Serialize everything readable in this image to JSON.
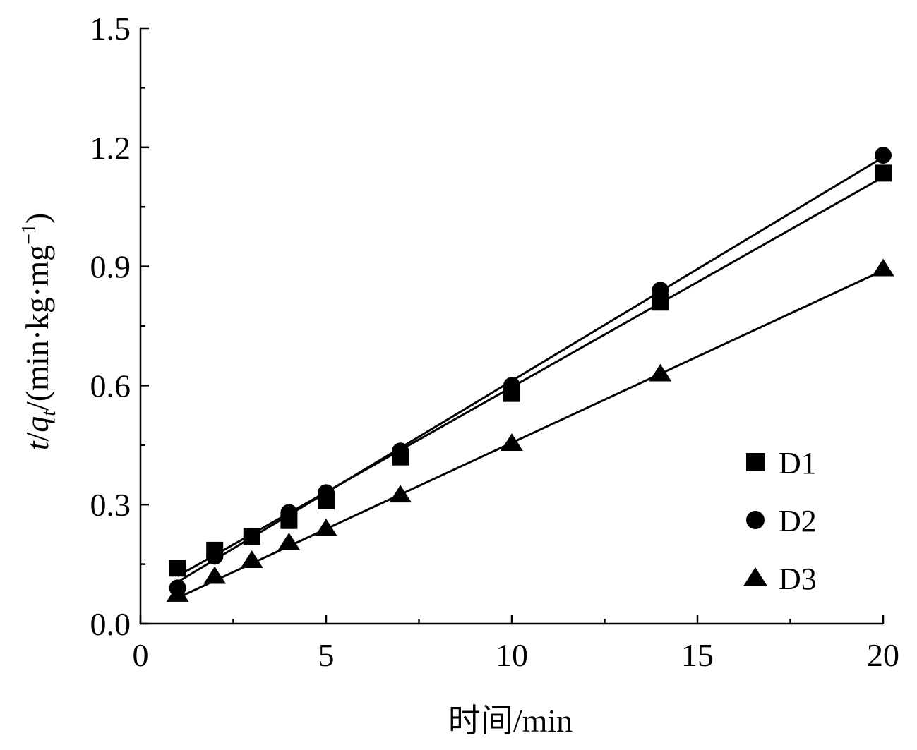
{
  "chart_data": {
    "type": "scatter",
    "title": "",
    "xlabel": "时间/min",
    "ylabel_parts": {
      "t": "t",
      "slash1": "/",
      "q": "q",
      "q_sub": "t",
      "unit": "/(min·kg·mg",
      "unit_sup": "−1",
      "close": ")"
    },
    "xlim": [
      0,
      20
    ],
    "ylim": [
      0.0,
      1.5
    ],
    "x_ticks": [
      0,
      5,
      10,
      15,
      20
    ],
    "x_tick_labels": [
      "0",
      "5",
      "10",
      "15",
      "20"
    ],
    "y_ticks": [
      0.0,
      0.3,
      0.6,
      0.9,
      1.2,
      1.5
    ],
    "y_tick_labels": [
      "0.0",
      "0.3",
      "0.6",
      "0.9",
      "1.2",
      "1.5"
    ],
    "grid": false,
    "legend_position": "bottom-right",
    "series": [
      {
        "name": "D1",
        "marker": "square",
        "color": "#000000",
        "x": [
          1,
          2,
          3,
          4,
          5,
          7,
          10,
          14,
          20
        ],
        "y": [
          0.14,
          0.185,
          0.22,
          0.26,
          0.31,
          0.42,
          0.58,
          0.81,
          1.135
        ],
        "fit_line": [
          [
            1,
            0.12
          ],
          [
            20,
            1.125
          ]
        ]
      },
      {
        "name": "D2",
        "marker": "circle",
        "color": "#000000",
        "x": [
          1,
          2,
          3,
          4,
          5,
          7,
          10,
          14,
          20
        ],
        "y": [
          0.09,
          0.17,
          0.22,
          0.28,
          0.33,
          0.435,
          0.6,
          0.84,
          1.18
        ],
        "fit_line": [
          [
            1,
            0.105
          ],
          [
            20,
            1.175
          ]
        ]
      },
      {
        "name": "D3",
        "marker": "triangle",
        "color": "#000000",
        "x": [
          1,
          2,
          3,
          4,
          5,
          7,
          10,
          14,
          20
        ],
        "y": [
          0.075,
          0.12,
          0.16,
          0.205,
          0.24,
          0.325,
          0.455,
          0.63,
          0.895
        ],
        "fit_line": [
          [
            1,
            0.065
          ],
          [
            20,
            0.89
          ]
        ]
      }
    ]
  }
}
